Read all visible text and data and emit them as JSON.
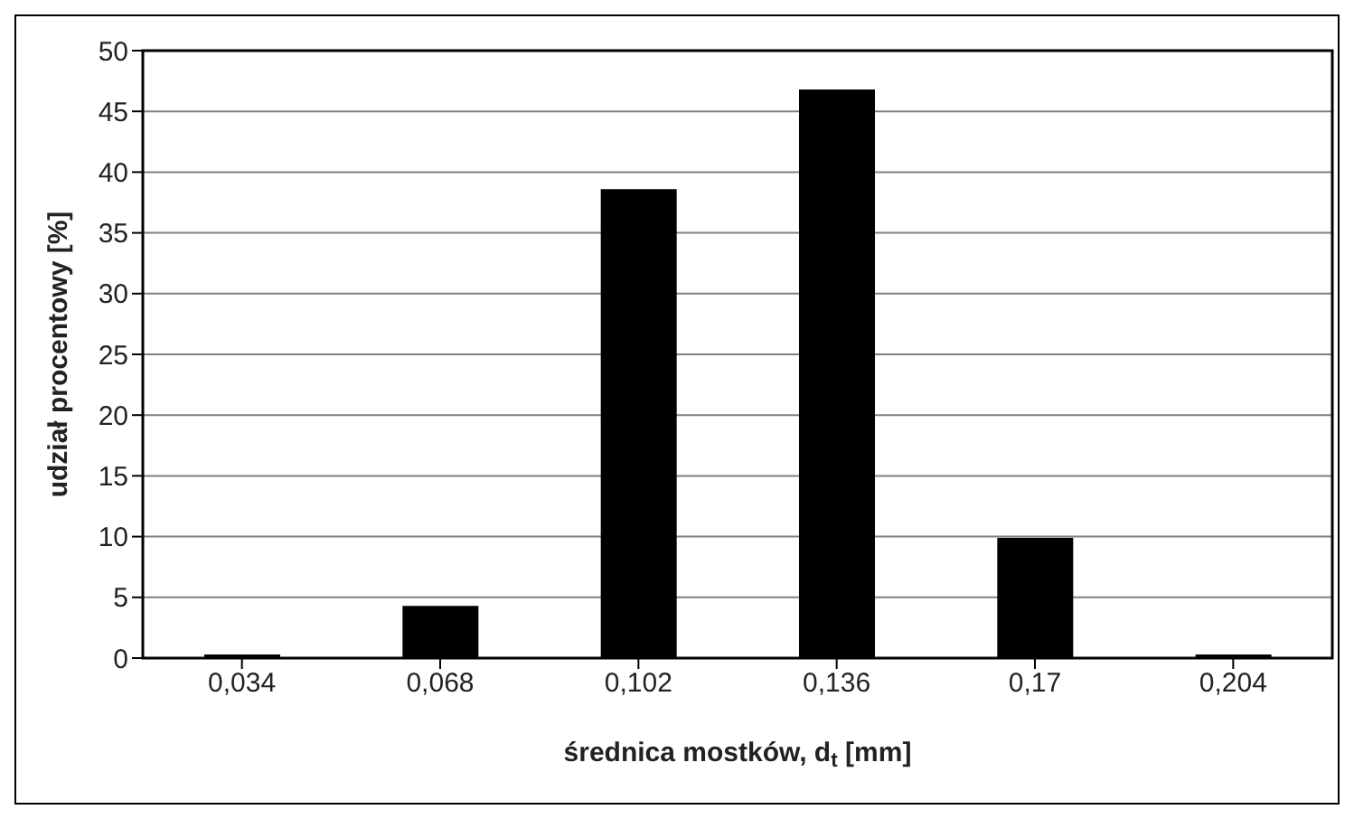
{
  "chart_data": {
    "type": "bar",
    "xlabel": "średnica mostków, d$_{t}$ [mm]",
    "ylabel": "udział procentowy  [%]",
    "categories": [
      "0,034",
      "0,068",
      "0,102",
      "0,136",
      "0,17",
      "0,204"
    ],
    "values": [
      0.3,
      4.3,
      38.6,
      46.8,
      9.9,
      0.3
    ],
    "color": "#000000",
    "ylim": [
      0,
      50
    ],
    "yticks": [
      0,
      5,
      10,
      15,
      20,
      25,
      30,
      35,
      40,
      45,
      50
    ],
    "grid": "y"
  }
}
